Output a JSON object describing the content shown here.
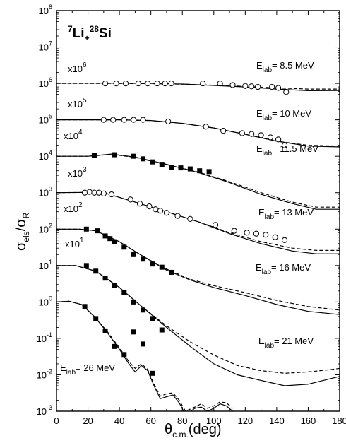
{
  "chart_data": {
    "type": "scatter",
    "title": {
      "sup1": "7",
      "base1": "Li",
      "sub": "+",
      "sup2": "28",
      "base2": "Si"
    },
    "xlabel": {
      "base": "θ",
      "sub": "c.m.",
      "rest": "(deg)"
    },
    "ylabel": {
      "s1": "σ",
      "sub1": "els",
      "mid": "/σ",
      "sub2": "R"
    },
    "xlim": [
      0,
      180
    ],
    "ylim_log10": [
      -3,
      8
    ],
    "yscale": "log",
    "x_ticks": [
      "0",
      "10",
      "20",
      "30",
      "40",
      "50",
      "60",
      "70",
      "80",
      "90",
      "100",
      "110",
      "120",
      "130",
      "140",
      "150",
      "160",
      "170",
      "180"
    ],
    "y_ticks": [
      {
        "base": "10",
        "exp": "-3"
      },
      {
        "base": "10",
        "exp": "-2"
      },
      {
        "base": "10",
        "exp": "-1"
      },
      {
        "base": "10",
        "exp": "0"
      },
      {
        "base": "10",
        "exp": "1"
      },
      {
        "base": "10",
        "exp": "2"
      },
      {
        "base": "10",
        "exp": "3"
      },
      {
        "base": "10",
        "exp": "4"
      },
      {
        "base": "10",
        "exp": "5"
      },
      {
        "base": "10",
        "exp": "6"
      },
      {
        "base": "10",
        "exp": "7"
      },
      {
        "base": "10",
        "exp": "8"
      }
    ],
    "series": [
      {
        "energy_label": {
          "pre": "E",
          "sub": "lab",
          "post": "= 8.5 MeV"
        },
        "scale_label": {
          "pre": "x10",
          "sup": "6"
        },
        "marker": "open-circle",
        "points": [
          [
            31,
            1000000.0
          ],
          [
            38,
            1000000.0
          ],
          [
            44,
            1000000.0
          ],
          [
            52,
            1000000.0
          ],
          [
            58,
            1000000.0
          ],
          [
            64,
            1000000.0
          ],
          [
            69,
            1000000.0
          ],
          [
            73,
            1000000.0
          ],
          [
            93,
            1000000.0
          ],
          [
            104,
            1000000.0
          ],
          [
            112,
            900000.0
          ],
          [
            120,
            850000.0
          ],
          [
            124,
            830000.0
          ],
          [
            128,
            800000.0
          ],
          [
            137,
            800000.0
          ],
          [
            141,
            750000.0
          ],
          [
            146,
            580000.0
          ]
        ],
        "solid": [
          [
            0,
            1020000.0
          ],
          [
            30,
            1020000.0
          ],
          [
            60,
            1000000.0
          ],
          [
            80,
            960000.0
          ],
          [
            100,
            880000.0
          ],
          [
            120,
            800000.0
          ],
          [
            140,
            700000.0
          ],
          [
            160,
            630000.0
          ],
          [
            180,
            640000.0
          ]
        ],
        "dashed": [
          [
            0,
            1000000.0
          ],
          [
            30,
            1000000.0
          ],
          [
            60,
            980000.0
          ],
          [
            80,
            950000.0
          ],
          [
            100,
            890000.0
          ],
          [
            120,
            830000.0
          ],
          [
            140,
            750000.0
          ],
          [
            160,
            700000.0
          ],
          [
            180,
            700000.0
          ]
        ]
      },
      {
        "energy_label": {
          "pre": "E",
          "sub": "lab",
          "post": "= 10 MeV"
        },
        "scale_label": {
          "pre": "x10",
          "sup": "5"
        },
        "marker": "open-circle",
        "points": [
          [
            30,
            100000.0
          ],
          [
            36,
            100000.0
          ],
          [
            43,
            100000.0
          ],
          [
            49,
            100000.0
          ],
          [
            55,
            100000.0
          ],
          [
            71,
            90000.0
          ],
          [
            95,
            65000.0
          ],
          [
            106,
            50000.0
          ],
          [
            118,
            43000.0
          ],
          [
            124,
            41000.0
          ],
          [
            130,
            38000.0
          ],
          [
            136,
            33000.0
          ],
          [
            141,
            29000.0
          ],
          [
            145,
            20000.0
          ]
        ],
        "solid": [
          [
            0,
            100000.0
          ],
          [
            40,
            100000.0
          ],
          [
            60,
            96000.0
          ],
          [
            80,
            80000.0
          ],
          [
            100,
            60000.0
          ],
          [
            120,
            40000.0
          ],
          [
            140,
            26000.0
          ],
          [
            160,
            19000.0
          ],
          [
            180,
            18000.0
          ]
        ],
        "dashed": [
          [
            0,
            100000.0
          ],
          [
            40,
            100000.0
          ],
          [
            60,
            96000.0
          ],
          [
            80,
            80000.0
          ],
          [
            100,
            60000.0
          ],
          [
            120,
            40000.0
          ],
          [
            140,
            26000.0
          ],
          [
            160,
            20000.0
          ],
          [
            180,
            19000.0
          ]
        ]
      },
      {
        "energy_label": {
          "pre": "E",
          "sub": "lab",
          "post": "= 11.5 MeV"
        },
        "scale_label": {
          "pre": "x10",
          "sup": "4"
        },
        "marker": "filled-square",
        "points": [
          [
            24,
            10500.0
          ],
          [
            37,
            11000.0
          ],
          [
            49,
            10000.0
          ],
          [
            55,
            8500.0
          ],
          [
            61,
            7000.0
          ],
          [
            67,
            6000.0
          ],
          [
            73,
            5000.0
          ],
          [
            79,
            4800.0
          ],
          [
            85,
            4500.0
          ],
          [
            91,
            4000.0
          ],
          [
            97,
            3800.0
          ]
        ],
        "solid": [
          [
            0,
            10000.0
          ],
          [
            20,
            10000.0
          ],
          [
            35,
            11500.0
          ],
          [
            50,
            9500.0
          ],
          [
            70,
            6000.0
          ],
          [
            90,
            3600.0
          ],
          [
            110,
            1900.0
          ],
          [
            130,
            900.0
          ],
          [
            150,
            500.0
          ],
          [
            165,
            350.0
          ],
          [
            180,
            350.0
          ]
        ],
        "dashed": [
          [
            0,
            10000.0
          ],
          [
            20,
            10000.0
          ],
          [
            35,
            11200.0
          ],
          [
            50,
            9300.0
          ],
          [
            70,
            5900.0
          ],
          [
            90,
            3700.0
          ],
          [
            110,
            2000.0
          ],
          [
            130,
            1000.0
          ],
          [
            150,
            550.0
          ],
          [
            165,
            400.0
          ],
          [
            180,
            400.0
          ]
        ]
      },
      {
        "energy_label": {
          "pre": "E",
          "sub": "lab",
          "post": "= 13 MeV"
        },
        "scale_label": {
          "pre": "x10",
          "sup": "3"
        },
        "marker": "open-circle",
        "points": [
          [
            18,
            1000.0
          ],
          [
            21,
            1050.0
          ],
          [
            24,
            1000.0
          ],
          [
            27,
            1000.0
          ],
          [
            30,
            950.0
          ],
          [
            35,
            900.0
          ],
          [
            47,
            650.0
          ],
          [
            53,
            500.0
          ],
          [
            59,
            420.0
          ],
          [
            63,
            350.0
          ],
          [
            66,
            320.0
          ],
          [
            70,
            280.0
          ],
          [
            77,
            230.0
          ],
          [
            85,
            190.0
          ],
          [
            101,
            130.0
          ],
          [
            113,
            90.0
          ],
          [
            121,
            80.0
          ],
          [
            127,
            75.0
          ],
          [
            133,
            70.0
          ],
          [
            139,
            60.0
          ],
          [
            145,
            50.0
          ]
        ],
        "solid": [
          [
            0,
            1000.0
          ],
          [
            20,
            1020.0
          ],
          [
            30,
            1000.0
          ],
          [
            50,
            550.0
          ],
          [
            70,
            300.0
          ],
          [
            90,
            160.0
          ],
          [
            110,
            75.0
          ],
          [
            130,
            40.0
          ],
          [
            150,
            25.0
          ],
          [
            165,
            21.0
          ],
          [
            180,
            21.0
          ]
        ],
        "dashed": [
          [
            0,
            1000.0
          ],
          [
            20,
            1020.0
          ],
          [
            30,
            1000.0
          ],
          [
            50,
            550.0
          ],
          [
            70,
            300.0
          ],
          [
            90,
            160.0
          ],
          [
            110,
            80.0
          ],
          [
            130,
            45.0
          ],
          [
            150,
            30.0
          ],
          [
            165,
            26.0
          ],
          [
            180,
            26.0
          ]
        ]
      },
      {
        "energy_label": {
          "pre": "E",
          "sub": "lab",
          "post": "= 16 MeV"
        },
        "scale_label": {
          "pre": "x10",
          "sup": "2"
        },
        "marker": "filled-square",
        "points": [
          [
            19,
            100.0
          ],
          [
            26,
            90.0
          ],
          [
            31,
            65.0
          ],
          [
            34,
            55.0
          ],
          [
            37,
            45.0
          ],
          [
            43,
            32.0
          ],
          [
            49,
            20.0
          ],
          [
            55,
            15.0
          ],
          [
            61,
            11.0
          ],
          [
            67,
            9.0
          ],
          [
            73,
            6.5
          ]
        ],
        "solid": [
          [
            0,
            100.0
          ],
          [
            15,
            100.0
          ],
          [
            25,
            90.0
          ],
          [
            40,
            45.0
          ],
          [
            55,
            18.0
          ],
          [
            70,
            7.5
          ],
          [
            85,
            4.0
          ],
          [
            100,
            2.5
          ],
          [
            120,
            1.5
          ],
          [
            140,
            0.85
          ],
          [
            160,
            0.55
          ],
          [
            180,
            0.45
          ]
        ],
        "dashed": [
          [
            0,
            100.0
          ],
          [
            15,
            100.0
          ],
          [
            25,
            90.0
          ],
          [
            40,
            45.0
          ],
          [
            55,
            18.0
          ],
          [
            70,
            8.0
          ],
          [
            85,
            4.2
          ],
          [
            100,
            2.8
          ],
          [
            120,
            1.8
          ],
          [
            140,
            1.1
          ],
          [
            160,
            0.75
          ],
          [
            180,
            0.6
          ]
        ]
      },
      {
        "energy_label": {
          "pre": "E",
          "sub": "lab",
          "post": "= 21 MeV"
        },
        "scale_label": {
          "pre": "x10",
          "sup": "1"
        },
        "marker": "filled-square",
        "points": [
          [
            19,
            10.0
          ],
          [
            25,
            7.0
          ],
          [
            31,
            4.5
          ],
          [
            37,
            2.8
          ],
          [
            43,
            1.8
          ],
          [
            49,
            1.0
          ],
          [
            55,
            0.6
          ],
          [
            61,
            0.35
          ],
          [
            67,
            0.17
          ]
        ],
        "solid": [
          [
            0,
            10.0
          ],
          [
            12,
            10.0
          ],
          [
            25,
            7.0
          ],
          [
            40,
            2.5
          ],
          [
            55,
            0.7
          ],
          [
            70,
            0.2
          ],
          [
            85,
            0.06
          ],
          [
            100,
            0.02
          ],
          [
            115,
            0.01
          ],
          [
            130,
            0.007
          ],
          [
            145,
            0.005
          ],
          [
            160,
            0.0055
          ],
          [
            175,
            0.008
          ],
          [
            180,
            0.009
          ]
        ],
        "dashed": [
          [
            0,
            10.0
          ],
          [
            12,
            10.0
          ],
          [
            25,
            7.0
          ],
          [
            40,
            2.5
          ],
          [
            55,
            0.7
          ],
          [
            70,
            0.22
          ],
          [
            85,
            0.08
          ],
          [
            100,
            0.035
          ],
          [
            115,
            0.018
          ],
          [
            130,
            0.013
          ],
          [
            145,
            0.011
          ],
          [
            160,
            0.012
          ],
          [
            175,
            0.014
          ],
          [
            180,
            0.015
          ]
        ]
      },
      {
        "energy_label": {
          "pre": "E",
          "sub": "lab",
          "post": "= 26 MeV"
        },
        "scale_label": null,
        "marker": "filled-square",
        "points": [
          [
            18,
            0.75
          ],
          [
            25,
            0.35
          ],
          [
            31,
            0.16
          ],
          [
            37,
            0.06
          ],
          [
            43,
            0.036
          ],
          [
            49,
            0.15
          ],
          [
            55,
            0.07
          ],
          [
            61,
            0.011
          ]
        ],
        "solid": [
          [
            0,
            1.0
          ],
          [
            8,
            1.05
          ],
          [
            16,
            0.85
          ],
          [
            24,
            0.4
          ],
          [
            32,
            0.15
          ],
          [
            40,
            0.05
          ],
          [
            46,
            0.02
          ],
          [
            50,
            0.012
          ],
          [
            54,
            0.018
          ],
          [
            58,
            0.013
          ],
          [
            62,
            0.005
          ],
          [
            66,
            0.0022
          ],
          [
            70,
            0.0025
          ],
          [
            74,
            0.0028
          ],
          [
            78,
            0.0017
          ],
          [
            82,
            0.0008
          ],
          [
            88,
            0.0012
          ],
          [
            92,
            0.0013
          ],
          [
            96,
            0.001
          ],
          [
            100,
            0.0012
          ],
          [
            104,
            0.0016
          ],
          [
            108,
            0.0014
          ],
          [
            112,
            0.001
          ]
        ],
        "dashed": [
          [
            0,
            1.0
          ],
          [
            8,
            1.05
          ],
          [
            16,
            0.85
          ],
          [
            24,
            0.4
          ],
          [
            32,
            0.16
          ],
          [
            40,
            0.055
          ],
          [
            46,
            0.023
          ],
          [
            50,
            0.015
          ],
          [
            54,
            0.02
          ],
          [
            58,
            0.014
          ],
          [
            62,
            0.0055
          ],
          [
            66,
            0.0026
          ],
          [
            70,
            0.003
          ],
          [
            74,
            0.0032
          ],
          [
            78,
            0.002
          ],
          [
            82,
            0.001
          ],
          [
            88,
            0.0013
          ],
          [
            92,
            0.0016
          ],
          [
            96,
            0.0012
          ],
          [
            100,
            0.0014
          ],
          [
            104,
            0.0018
          ],
          [
            108,
            0.0017
          ],
          [
            112,
            0.0012
          ]
        ]
      }
    ]
  }
}
